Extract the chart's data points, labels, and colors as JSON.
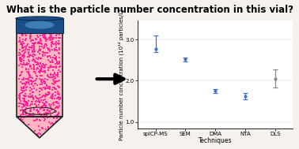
{
  "title": "What is the particle number concentration in this vial?",
  "techniques": [
    "spICP-MS",
    "SEM",
    "DMA",
    "NTA",
    "DLS"
  ],
  "values": [
    2.78,
    2.52,
    1.75,
    1.62,
    2.05
  ],
  "errors_low": [
    0.08,
    0.05,
    0.04,
    0.08,
    0.22
  ],
  "errors_high": [
    0.32,
    0.05,
    0.04,
    0.08,
    0.22
  ],
  "point_colors": [
    "#4472C4",
    "#4472C4",
    "#4472C4",
    "#4472C4",
    "#888888"
  ],
  "error_colors": [
    "#4472C4",
    "#4472C4",
    "#4472C4",
    "#4472C4",
    "#888888"
  ],
  "ylabel": "Particle number concentration (10¹⁴ particles/L)",
  "xlabel": "Techniques",
  "ylim": [
    0.85,
    3.45
  ],
  "yticks": [
    1.0,
    2.0,
    3.0
  ],
  "background_color": "#f5f2ee",
  "title_fontsize": 8.5,
  "axis_fontsize": 5.5,
  "tick_fontsize": 5.0
}
